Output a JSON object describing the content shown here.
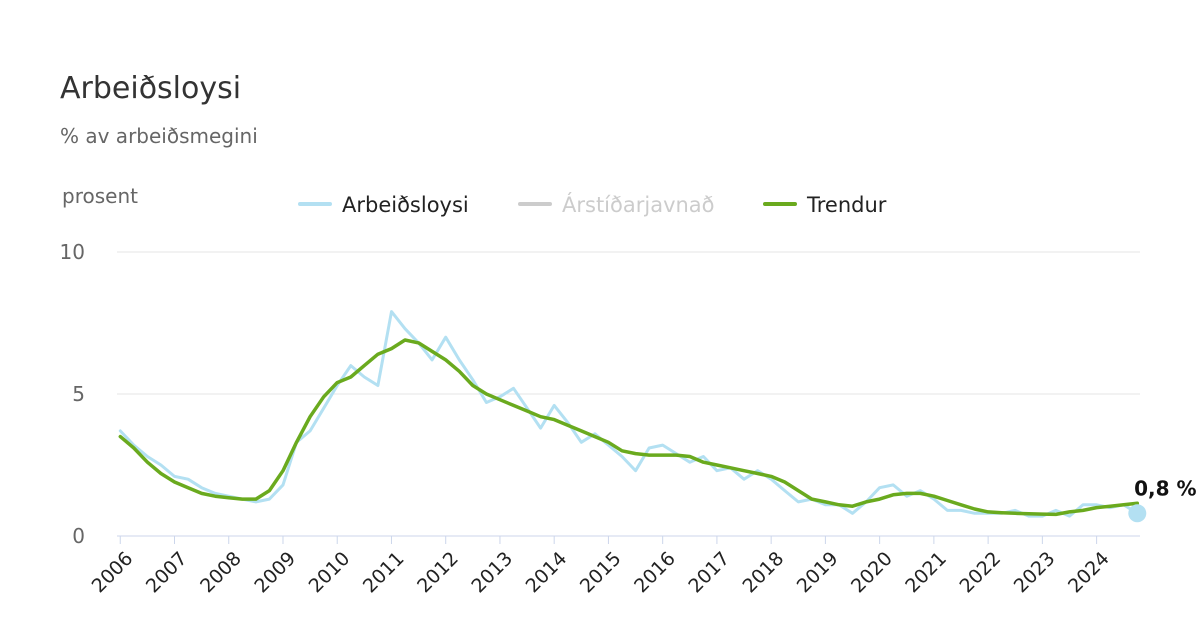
{
  "chart_data": {
    "type": "line",
    "title": "Arbeiðsloysi",
    "subtitle": "% av arbeiðsmegini",
    "y_label": "prosent",
    "x": [
      2006,
      2006.25,
      2006.5,
      2006.75,
      2007,
      2007.25,
      2007.5,
      2007.75,
      2008,
      2008.25,
      2008.5,
      2008.75,
      2009,
      2009.25,
      2009.5,
      2009.75,
      2010,
      2010.25,
      2010.5,
      2010.75,
      2011,
      2011.25,
      2011.5,
      2011.75,
      2012,
      2012.25,
      2012.5,
      2012.75,
      2013,
      2013.25,
      2013.5,
      2013.75,
      2014,
      2014.25,
      2014.5,
      2014.75,
      2015,
      2015.25,
      2015.5,
      2015.75,
      2016,
      2016.25,
      2016.5,
      2016.75,
      2017,
      2017.25,
      2017.5,
      2017.75,
      2018,
      2018.25,
      2018.5,
      2018.75,
      2019,
      2019.25,
      2019.5,
      2019.75,
      2020,
      2020.25,
      2020.5,
      2020.75,
      2021,
      2021.25,
      2021.5,
      2021.75,
      2022,
      2022.25,
      2022.5,
      2022.75,
      2023,
      2023.25,
      2023.5,
      2023.75,
      2024,
      2024.25,
      2024.5,
      2024.75
    ],
    "series": [
      {
        "name": "Arbeiðsloysi",
        "color": "#b3e0f2",
        "width": 3,
        "values": [
          3.7,
          3.2,
          2.8,
          2.5,
          2.1,
          2.0,
          1.7,
          1.5,
          1.4,
          1.3,
          1.2,
          1.3,
          1.8,
          3.3,
          3.7,
          4.5,
          5.3,
          6.0,
          5.6,
          5.3,
          7.9,
          7.3,
          6.8,
          6.2,
          7.0,
          6.2,
          5.5,
          4.7,
          4.9,
          5.2,
          4.5,
          3.8,
          4.6,
          4.0,
          3.3,
          3.6,
          3.2,
          2.8,
          2.3,
          3.1,
          3.2,
          2.9,
          2.6,
          2.8,
          2.3,
          2.4,
          2.0,
          2.3,
          2.0,
          1.6,
          1.2,
          1.3,
          1.1,
          1.1,
          0.8,
          1.2,
          1.7,
          1.8,
          1.4,
          1.6,
          1.3,
          0.9,
          0.9,
          0.8,
          0.8,
          0.8,
          0.9,
          0.7,
          0.7,
          0.9,
          0.7,
          1.1,
          1.1,
          1.0,
          1.1,
          0.8
        ]
      },
      {
        "name": "Árstíðarjavnað",
        "color": "#cccccc",
        "visible": false
      },
      {
        "name": "Trendur",
        "color": "#6aaa1e",
        "width": 3.5,
        "values": [
          3.5,
          3.1,
          2.6,
          2.2,
          1.9,
          1.7,
          1.5,
          1.4,
          1.35,
          1.3,
          1.3,
          1.6,
          2.3,
          3.3,
          4.2,
          4.9,
          5.4,
          5.6,
          6.0,
          6.4,
          6.6,
          6.9,
          6.8,
          6.5,
          6.2,
          5.8,
          5.3,
          5.0,
          4.8,
          4.6,
          4.4,
          4.2,
          4.1,
          3.9,
          3.7,
          3.5,
          3.3,
          3.0,
          2.9,
          2.85,
          2.85,
          2.85,
          2.8,
          2.6,
          2.5,
          2.4,
          2.3,
          2.2,
          2.1,
          1.9,
          1.6,
          1.3,
          1.2,
          1.1,
          1.05,
          1.2,
          1.3,
          1.45,
          1.5,
          1.5,
          1.4,
          1.25,
          1.1,
          0.95,
          0.85,
          0.82,
          0.8,
          0.78,
          0.77,
          0.76,
          0.85,
          0.9,
          1.0,
          1.05,
          1.1,
          1.15
        ]
      }
    ],
    "annotations": [
      {
        "x": 2024.75,
        "y": 0.8,
        "label": "0,8 %"
      }
    ],
    "xlim": [
      2005.94,
      2024.8
    ],
    "xticks": [
      2006,
      2007,
      2008,
      2009,
      2010,
      2011,
      2012,
      2013,
      2014,
      2015,
      2016,
      2017,
      2018,
      2019,
      2020,
      2021,
      2022,
      2023,
      2024
    ],
    "ylim": [
      0,
      10
    ],
    "yticks": [
      0,
      5,
      10
    ],
    "grid": true
  }
}
